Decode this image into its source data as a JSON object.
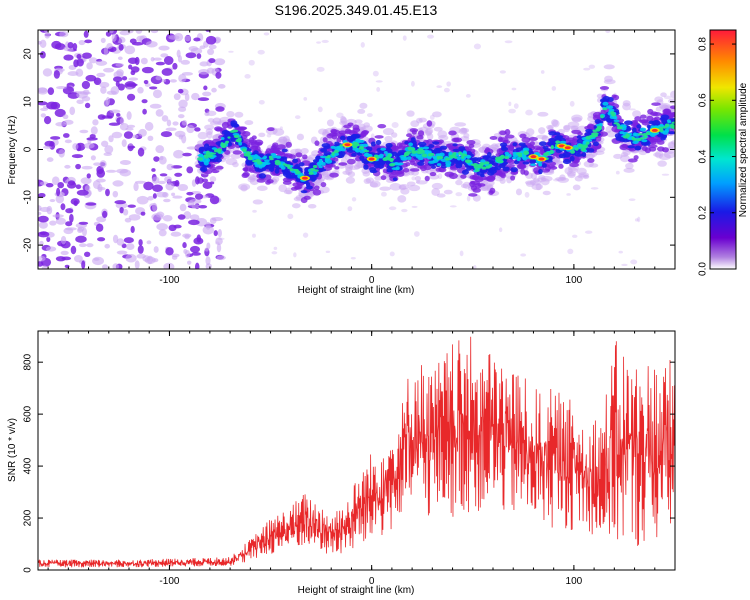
{
  "title": "S196.2025.349.01.45.E13",
  "colors": {
    "line": "#e8282a",
    "track_high": "#ff2a2a",
    "track_mid": "#22e08a",
    "track_low": "#1a20e6",
    "noise": "#7a22e0",
    "noise_light": "#c9a6f2"
  },
  "chart_data": [
    {
      "id": "spectrogram",
      "type": "heatmap",
      "xlabel": "Height of straight line (km)",
      "ylabel": "Frequency (Hz)",
      "xlim": [
        -165,
        150
      ],
      "ylim": [
        -25,
        25
      ],
      "xticks": [
        -100,
        0,
        100
      ],
      "xtick_labels": [
        "-100",
        "0",
        "100"
      ],
      "yticks": [
        -20,
        -10,
        0,
        10,
        20
      ],
      "ytick_labels": [
        "-20",
        "-10",
        "0",
        "10",
        "20"
      ],
      "noise_region_km": [
        -165,
        -82
      ],
      "track": {
        "height_km": [
          -85,
          -75,
          -68,
          -62,
          -55,
          -48,
          -40,
          -33,
          -27,
          -20,
          -13,
          -6,
          0,
          6,
          12,
          20,
          28,
          36,
          44,
          52,
          60,
          68,
          76,
          84,
          92,
          100,
          106,
          112,
          116,
          122,
          128,
          134,
          140,
          148
        ],
        "frequency_hz": [
          -2,
          0,
          4,
          -1,
          -3,
          -2,
          -4,
          -6,
          -4,
          -1,
          1,
          1,
          -2,
          -1,
          -3,
          0,
          -1,
          -2,
          -1,
          -4,
          -3,
          -1,
          -1,
          -2,
          1,
          0,
          1,
          4,
          10,
          5,
          2,
          3,
          4,
          5
        ]
      },
      "colorbar": {
        "label": "Normalized spectral amplitude",
        "range": [
          0.0,
          0.85
        ],
        "ticks": [
          0.0,
          0.2,
          0.4,
          0.6,
          0.8
        ],
        "tick_labels": [
          "0.0",
          "0.2",
          "0.4",
          "0.6",
          "0.8"
        ]
      }
    },
    {
      "id": "snr",
      "type": "line",
      "xlabel": "Height of straight line (km)",
      "ylabel": "SNR (10 * v/v)",
      "xlim": [
        -165,
        150
      ],
      "ylim": [
        0,
        920
      ],
      "xticks": [
        -100,
        0,
        100
      ],
      "xtick_labels": [
        "-100",
        "0",
        "100"
      ],
      "yticks": [
        0,
        200,
        400,
        600,
        800
      ],
      "ytick_labels": [
        "0",
        "200",
        "400",
        "600",
        "800"
      ],
      "envelope": {
        "height_km": [
          -165,
          -120,
          -70,
          -60,
          -50,
          -40,
          -33,
          -20,
          -12,
          -5,
          5,
          10,
          15,
          20,
          30,
          40,
          50,
          60,
          70,
          80,
          90,
          100,
          110,
          115,
          120,
          130,
          140,
          150
        ],
        "snr_low": [
          10,
          10,
          15,
          30,
          60,
          70,
          90,
          50,
          60,
          80,
          120,
          150,
          180,
          200,
          200,
          200,
          220,
          220,
          200,
          180,
          160,
          150,
          130,
          70,
          100,
          80,
          100,
          120
        ],
        "snr_high": [
          40,
          40,
          50,
          120,
          200,
          250,
          300,
          230,
          280,
          400,
          520,
          560,
          650,
          840,
          780,
          880,
          900,
          840,
          800,
          700,
          700,
          650,
          600,
          650,
          890,
          820,
          820,
          820
        ]
      }
    }
  ]
}
